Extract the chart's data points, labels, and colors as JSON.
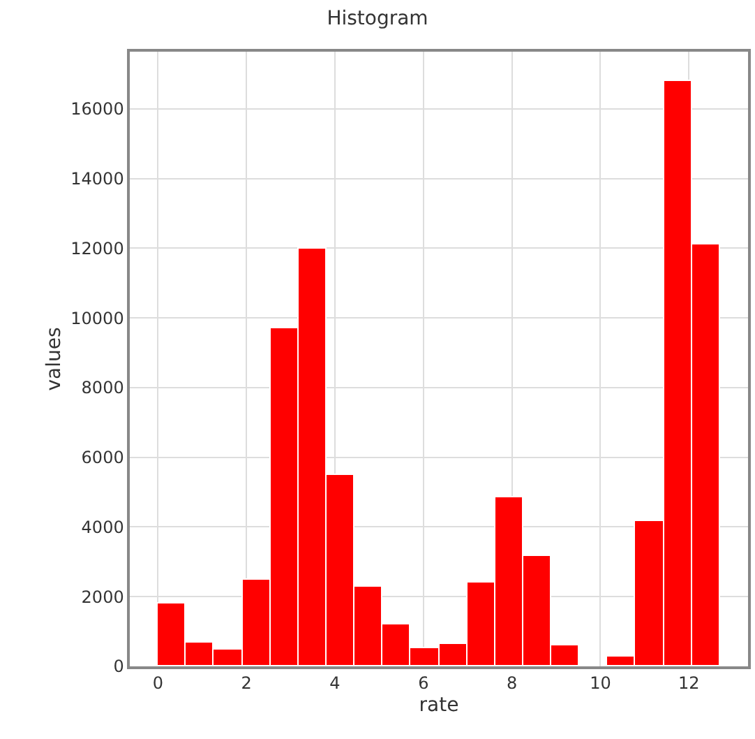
{
  "chart_data": {
    "type": "histogram",
    "title": "Histogram",
    "xlabel": "rate",
    "ylabel": "values",
    "bins": [
      0,
      0.635,
      1.27,
      1.905,
      2.54,
      3.175,
      3.81,
      4.445,
      5.08,
      5.715,
      6.35,
      6.985,
      7.62,
      8.255,
      8.89,
      9.525,
      10.16,
      10.795,
      11.43,
      12.065,
      12.7
    ],
    "values": [
      1800,
      670,
      500,
      2500,
      9700,
      12000,
      5500,
      2300,
      1200,
      520,
      630,
      2400,
      4850,
      3150,
      590,
      0,
      280,
      4170,
      16800,
      12100
    ],
    "color": "#ff0000",
    "xlim": [
      -0.635,
      13.335
    ],
    "xticks": [
      0,
      2,
      4,
      6,
      8,
      10,
      12
    ],
    "ylim": [
      0,
      17640
    ],
    "yticks": [
      0,
      2000,
      4000,
      6000,
      8000,
      10000,
      12000,
      14000,
      16000
    ],
    "grid": true
  }
}
